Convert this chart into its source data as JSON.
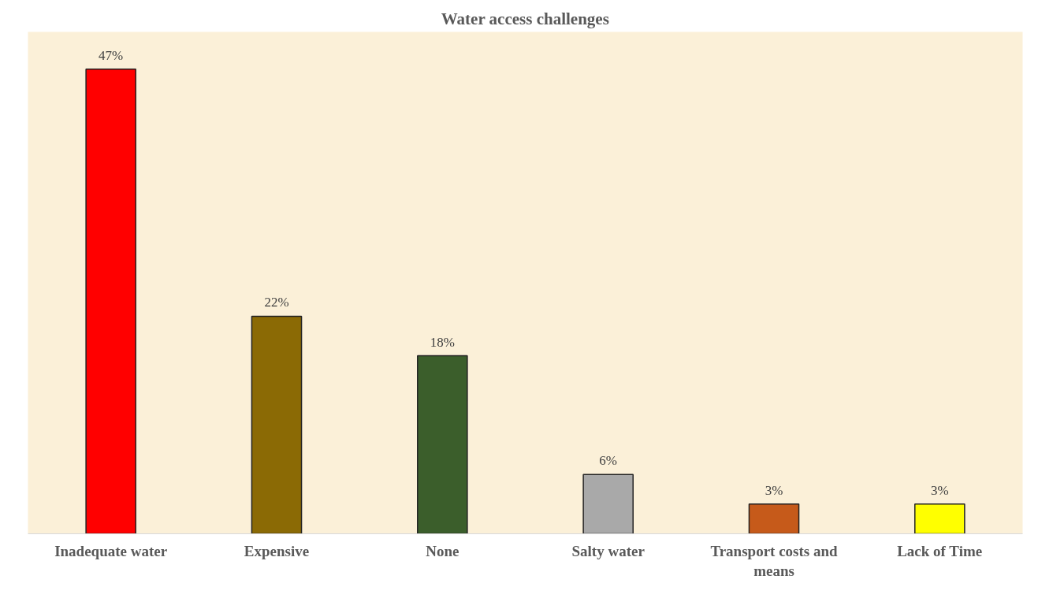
{
  "chart_data": {
    "type": "bar",
    "title": "Water access challenges",
    "categories": [
      "Inadequate water",
      "Expensive",
      "None",
      "Salty water",
      "Transport costs and\nmeans",
      "Lack of Time"
    ],
    "values": [
      47,
      22,
      18,
      6,
      3,
      3
    ],
    "colors": [
      "#ff0000",
      "#8b6a05",
      "#3b5e2b",
      "#a9a9a9",
      "#c65a1a",
      "#ffff00"
    ],
    "value_labels": [
      "47%",
      "22%",
      "18%",
      "6%",
      "3%",
      "3%"
    ],
    "grid": false
  }
}
